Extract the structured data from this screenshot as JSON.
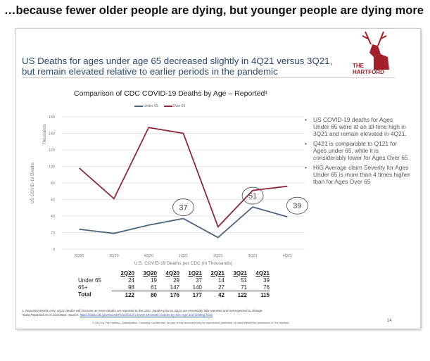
{
  "headline": "…because fewer older people are dying, but younger people are dying more",
  "slide": {
    "title": "US Deaths for ages under age 65 decreased slightly in 4Q21 versus 3Q21, but remain elevated relative to earlier periods in the pandemic",
    "logo_text": "THE HARTFORD",
    "logo_line1": "THE",
    "logo_line2": "HARTFORD",
    "bullets": [
      "US COVID-19 deaths for Ages Under 65 were at an all time high in 3Q21 and remain elevated in 4Q21.",
      "Q421 is comparable to Q121 for Ages under 65, while it is considerably lower for Ages Over 65",
      "HIG Average claim Severity for Ages Under 65 is more than 4 times higher than for Ages Over 65"
    ],
    "table": {
      "headers": [
        "2Q20",
        "3Q20",
        "4Q20",
        "1Q21",
        "2Q21",
        "3Q21",
        "4Q21"
      ],
      "rows": [
        {
          "label": "Under 65",
          "values": [
            "24",
            "19",
            "29",
            "37",
            "14",
            "51",
            "39"
          ]
        },
        {
          "label": "65+",
          "values": [
            "98",
            "61",
            "147",
            "140",
            "27",
            "71",
            "76"
          ]
        },
        {
          "label": "Total",
          "values": [
            "122",
            "80",
            "176",
            "177",
            "42",
            "122",
            "115"
          ]
        }
      ]
    },
    "footnote1": "1. Reported deaths only. 4Q21 deaths will increase as more deaths are reported to the CDC. Deaths prior to 4Q21 are essentially fully reported and not expected to change.",
    "footnote2": "*Data Reported as of 1/21/2022. Source: ",
    "footnote_link": "https://data.cdc.gov/NCHS/Provisional-COVID-19-Death-Counts-by-Sex-Age-and-S/9bhg-hcku",
    "copyright": "© 2022 by The Hartford. Classification: Company Confidential. No part of this document may be reproduced, published, or used without the permission of The Hartford.",
    "page_number": "14"
  },
  "chart_data": {
    "type": "line",
    "title": "Comparison of CDC COVID-19 Deaths by Age – Reported¹",
    "xlabel": "U.S. COVID-19 Deaths per CDC (In Thousands)",
    "ylabel": "US COVID-19 Deaths",
    "yunit": "Thousands",
    "categories": [
      "2Q20",
      "3Q20",
      "4Q20",
      "1Q21",
      "2Q21",
      "3Q21",
      "4Q21"
    ],
    "ylim": [
      0,
      160
    ],
    "yticks": [
      "0",
      "20",
      "40",
      "60",
      "80",
      "100",
      "120",
      "140",
      "160"
    ],
    "grid": true,
    "legend": "top",
    "series": [
      {
        "name": "Under 65",
        "color": "#4a6580",
        "values": [
          24,
          19,
          29,
          37,
          14,
          51,
          39
        ]
      },
      {
        "name": "Over 65",
        "color": "#8b2a3a",
        "values": [
          98,
          61,
          147,
          140,
          27,
          71,
          76
        ]
      }
    ],
    "annotations": [
      {
        "category": "1Q21",
        "text": "37"
      },
      {
        "category": "3Q21",
        "text": "51"
      },
      {
        "category": "4Q21",
        "text": "39"
      }
    ]
  }
}
